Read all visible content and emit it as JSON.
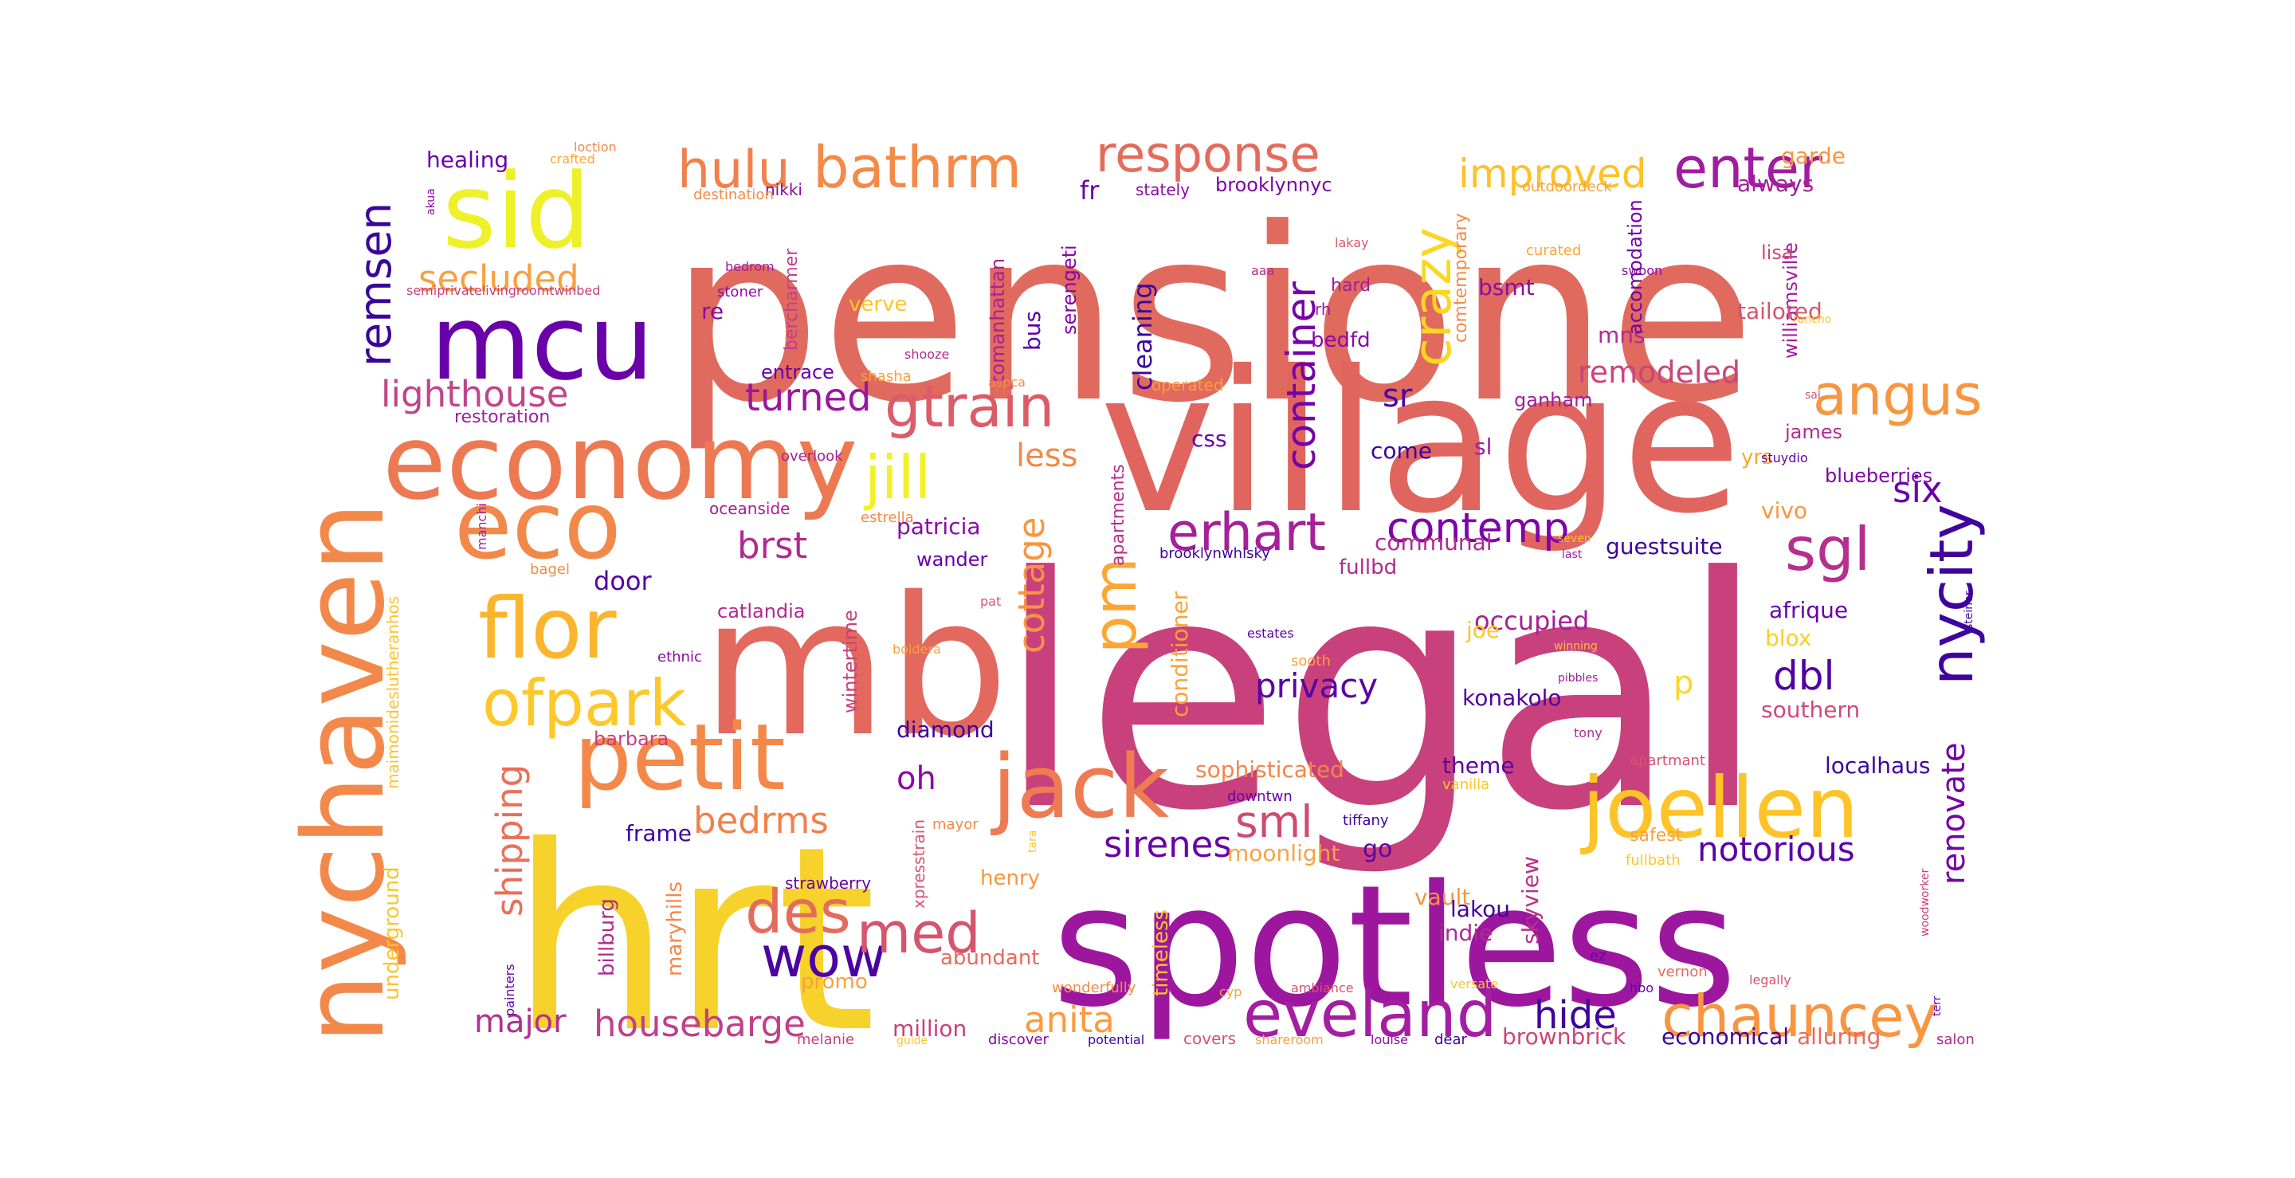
{
  "words": [
    {
      "text": "legal",
      "color": "#c8417d"
    },
    {
      "text": "pensione",
      "color": "#e06a5e"
    },
    {
      "text": "hrt",
      "color": "#f7d22a"
    },
    {
      "text": "village",
      "color": "#e0655f"
    },
    {
      "text": "mb",
      "color": "#e3685e"
    },
    {
      "text": "spotless",
      "color": "#9c179e"
    },
    {
      "text": "nychaven",
      "color": "#f2894a"
    },
    {
      "text": "economy",
      "color": "#ed7953"
    },
    {
      "text": "mcu",
      "color": "#6a00a8"
    },
    {
      "text": "sid",
      "color": "#eef12a"
    },
    {
      "text": "petit",
      "color": "#f48849"
    },
    {
      "text": "eco",
      "color": "#f2884a"
    },
    {
      "text": "joellen",
      "color": "#fdc328"
    },
    {
      "text": "jack",
      "color": "#ee7b52"
    },
    {
      "text": "flor",
      "color": "#fbb52c"
    },
    {
      "text": "ofpark",
      "color": "#fdc82a"
    },
    {
      "text": "eveland",
      "color": "#a31ea1"
    },
    {
      "text": "chauncey",
      "color": "#f89540"
    },
    {
      "text": "wow",
      "color": "#4b03a1"
    },
    {
      "text": "des",
      "color": "#e46c5c"
    },
    {
      "text": "med",
      "color": "#d5546e"
    },
    {
      "text": "nycity",
      "color": "#3e049c"
    },
    {
      "text": "angus",
      "color": "#f7963f"
    },
    {
      "text": "response",
      "color": "#e56b5c"
    },
    {
      "text": "bathrm",
      "color": "#f48a47"
    },
    {
      "text": "hulu",
      "color": "#f0804c"
    },
    {
      "text": "enter",
      "color": "#a01ca0"
    },
    {
      "text": "improved",
      "color": "#fdc228"
    },
    {
      "text": "crazy",
      "color": "#fbd724"
    },
    {
      "text": "gtrain",
      "color": "#db5c68"
    },
    {
      "text": "jill",
      "color": "#f1f125"
    },
    {
      "text": "erhart",
      "color": "#a62098"
    },
    {
      "text": "contemp",
      "color": "#7e03a8"
    },
    {
      "text": "sgl",
      "color": "#b52f8c"
    },
    {
      "text": "pm",
      "color": "#fca636"
    },
    {
      "text": "container",
      "color": "#7601a8"
    },
    {
      "text": "remsen",
      "color": "#3b049a"
    },
    {
      "text": "secluded",
      "color": "#f9a03e"
    },
    {
      "text": "lighthouse",
      "color": "#c0458a"
    },
    {
      "text": "turned",
      "color": "#9c179e"
    },
    {
      "text": "housebarge",
      "color": "#c23f8a"
    },
    {
      "text": "major",
      "color": "#b3308e"
    },
    {
      "text": "shipping",
      "color": "#e87059"
    },
    {
      "text": "sml",
      "color": "#cf4a73"
    },
    {
      "text": "bedrms",
      "color": "#f1814b"
    },
    {
      "text": "cottage",
      "color": "#f89541"
    },
    {
      "text": "hide",
      "color": "#3e049c"
    },
    {
      "text": "notorious",
      "color": "#5c01a6"
    },
    {
      "text": "renovate",
      "color": "#7701a8"
    },
    {
      "text": "dbl",
      "color": "#5002a2"
    },
    {
      "text": "six",
      "color": "#6a00a8"
    },
    {
      "text": "anita",
      "color": "#fb9b40"
    },
    {
      "text": "sirenes",
      "color": "#6a00a8"
    },
    {
      "text": "privacy",
      "color": "#5a02a3"
    },
    {
      "text": "less",
      "color": "#f48849"
    },
    {
      "text": "brst",
      "color": "#b12a90"
    },
    {
      "text": "oh",
      "color": "#8c0aa5"
    },
    {
      "text": "sr",
      "color": "#4c02a1"
    },
    {
      "text": "remodeled",
      "color": "#ca457a"
    },
    {
      "text": "occupied",
      "color": "#a62098"
    },
    {
      "text": "p",
      "color": "#fbd724"
    },
    {
      "text": "konakolo",
      "color": "#5102a3"
    },
    {
      "text": "door",
      "color": "#5302a3"
    },
    {
      "text": "patricia",
      "color": "#8a09a5"
    },
    {
      "text": "diamond",
      "color": "#3e049c"
    },
    {
      "text": "frame",
      "color": "#3e049c"
    },
    {
      "text": "sophisticated",
      "color": "#f3844b"
    },
    {
      "text": "moonlight",
      "color": "#f9a242"
    },
    {
      "text": "go",
      "color": "#5c01a6"
    },
    {
      "text": "theme",
      "color": "#5a02a3"
    },
    {
      "text": "vault",
      "color": "#f89441"
    },
    {
      "text": "lakou",
      "color": "#3e049c"
    },
    {
      "text": "indie",
      "color": "#b12a90"
    },
    {
      "text": "skyview",
      "color": "#b83289"
    },
    {
      "text": "communal",
      "color": "#b12a90"
    },
    {
      "text": "guestsuite",
      "color": "#3e049c"
    },
    {
      "text": "afrique",
      "color": "#6a00a8"
    },
    {
      "text": "blox",
      "color": "#fcce25"
    },
    {
      "text": "southern",
      "color": "#ce4b75"
    },
    {
      "text": "localhaus",
      "color": "#3e049c"
    },
    {
      "text": "brownbrick",
      "color": "#cc4778"
    },
    {
      "text": "economical",
      "color": "#3e049c"
    },
    {
      "text": "alluring",
      "color": "#e56b5d"
    },
    {
      "text": "joe",
      "color": "#fdc527"
    },
    {
      "text": "vivo",
      "color": "#f89540"
    },
    {
      "text": "healing",
      "color": "#6a00a8"
    },
    {
      "text": "cleaning",
      "color": "#3e049c"
    },
    {
      "text": "bus",
      "color": "#5c01a6"
    },
    {
      "text": "fr",
      "color": "#6a00a8"
    },
    {
      "text": "tomanhattan",
      "color": "#a62098"
    },
    {
      "text": "serengeti",
      "color": "#8606a6"
    },
    {
      "text": "conditioner",
      "color": "#fba238"
    },
    {
      "text": "apartments",
      "color": "#b52f8c"
    },
    {
      "text": "css",
      "color": "#6a00a8"
    },
    {
      "text": "come",
      "color": "#3e049c"
    },
    {
      "text": "sl",
      "color": "#a01ca0"
    },
    {
      "text": "fullbd",
      "color": "#b12a90"
    },
    {
      "text": "bedfd",
      "color": "#8c0aa5"
    },
    {
      "text": "mns",
      "color": "#b12a90"
    },
    {
      "text": "bsmt",
      "color": "#8c0aa5"
    },
    {
      "text": "accomodation",
      "color": "#7201a8"
    },
    {
      "text": "williamsville",
      "color": "#a31ea1"
    },
    {
      "text": "comtemporary",
      "color": "#f58b47"
    },
    {
      "text": "tailored",
      "color": "#d5546e"
    },
    {
      "text": "always",
      "color": "#a62098"
    },
    {
      "text": "garde",
      "color": "#f7963f"
    },
    {
      "text": "lisa",
      "color": "#cc4778"
    },
    {
      "text": "james",
      "color": "#b12a90"
    },
    {
      "text": "yrs",
      "color": "#fca636"
    },
    {
      "text": "blueberries",
      "color": "#7e03a8"
    },
    {
      "text": "ganham",
      "color": "#a31ea1"
    },
    {
      "text": "operated",
      "color": "#fb9f3a"
    },
    {
      "text": "brooklynnyc",
      "color": "#7e03a8"
    },
    {
      "text": "stately",
      "color": "#8a09a5"
    },
    {
      "text": "hard",
      "color": "#a01ca0"
    },
    {
      "text": "rh",
      "color": "#a01ca0"
    },
    {
      "text": "aaa",
      "color": "#b12a90"
    },
    {
      "text": "lakay",
      "color": "#d8576b"
    },
    {
      "text": "curated",
      "color": "#fca636"
    },
    {
      "text": "swoon",
      "color": "#8c0aa5"
    },
    {
      "text": "rancho",
      "color": "#fdc527"
    },
    {
      "text": "sal",
      "color": "#d5546e"
    },
    {
      "text": "stuydio",
      "color": "#6a00a8"
    },
    {
      "text": "outdoordeck",
      "color": "#fba238"
    },
    {
      "text": "nikki",
      "color": "#8c0aa5"
    },
    {
      "text": "destination",
      "color": "#f58b47"
    },
    {
      "text": "crafted",
      "color": "#fca636"
    },
    {
      "text": "loction",
      "color": "#f48849"
    },
    {
      "text": "akua",
      "color": "#8c0aa5"
    },
    {
      "text": "bedrom",
      "color": "#a01ca0"
    },
    {
      "text": "semiprivatelivingroomtwinbed",
      "color": "#c8417d"
    },
    {
      "text": "stoner",
      "color": "#8c0aa5"
    },
    {
      "text": "re",
      "color": "#8c0aa5"
    },
    {
      "text": "bercharmer",
      "color": "#c23f8a"
    },
    {
      "text": "verve",
      "color": "#fdc527"
    },
    {
      "text": "shooze",
      "color": "#b12a90"
    },
    {
      "text": "entrace",
      "color": "#6a00a8"
    },
    {
      "text": "shasha",
      "color": "#fb9f3a"
    },
    {
      "text": "restoration",
      "color": "#a01ca0"
    },
    {
      "text": "overlook",
      "color": "#a62098"
    },
    {
      "text": "aspca",
      "color": "#f58b47"
    },
    {
      "text": "oceanside",
      "color": "#a62098"
    },
    {
      "text": "estrella",
      "color": "#f58b47"
    },
    {
      "text": "manchi",
      "color": "#a31ea1"
    },
    {
      "text": "bagel",
      "color": "#f58b47"
    },
    {
      "text": "catlandia",
      "color": "#b12a90"
    },
    {
      "text": "wander",
      "color": "#6a00a8"
    },
    {
      "text": "wintertime",
      "color": "#c8417d"
    },
    {
      "text": "ethnic",
      "color": "#8c0aa5"
    },
    {
      "text": "boldera",
      "color": "#f9a03e"
    },
    {
      "text": "pat",
      "color": "#d8576b"
    },
    {
      "text": "maimonideslutheranhos",
      "color": "#fdc328"
    },
    {
      "text": "barbara",
      "color": "#c8417d"
    },
    {
      "text": "brooklynwhisky",
      "color": "#3e049c"
    },
    {
      "text": "estates",
      "color": "#5c01a6"
    },
    {
      "text": "pibbles",
      "color": "#a01ca0"
    },
    {
      "text": "winning",
      "color": "#fdc527"
    },
    {
      "text": "seven",
      "color": "#fdc527"
    },
    {
      "text": "last",
      "color": "#a01ca0"
    },
    {
      "text": "steiner",
      "color": "#3e049c"
    },
    {
      "text": "tony",
      "color": "#b12a90"
    },
    {
      "text": "sooth",
      "color": "#f9a03e"
    },
    {
      "text": "downtwn",
      "color": "#6a00a8"
    },
    {
      "text": "vanilla",
      "color": "#fdc527"
    },
    {
      "text": "apartmant",
      "color": "#d5546e"
    },
    {
      "text": "tiffany",
      "color": "#3e049c"
    },
    {
      "text": "mayor",
      "color": "#f48849"
    },
    {
      "text": "tara",
      "color": "#fdc527"
    },
    {
      "text": "fullbath",
      "color": "#fdc527"
    },
    {
      "text": "safest",
      "color": "#f9a03e"
    },
    {
      "text": "henry",
      "color": "#f7963f"
    },
    {
      "text": "strawberry",
      "color": "#6a00a8"
    },
    {
      "text": "xpresstrain",
      "color": "#d5546e"
    },
    {
      "text": "timeless",
      "color": "#fdc527"
    },
    {
      "text": "billburg",
      "color": "#b12a90"
    },
    {
      "text": "maryhills",
      "color": "#f48849"
    },
    {
      "text": "underground",
      "color": "#fdc527"
    },
    {
      "text": "painters",
      "color": "#6a00a8"
    },
    {
      "text": "promo",
      "color": "#f9a03e"
    },
    {
      "text": "abundant",
      "color": "#e56b5d"
    },
    {
      "text": "million",
      "color": "#c8417d"
    },
    {
      "text": "versate",
      "color": "#fdc527"
    },
    {
      "text": "ez",
      "color": "#6a00a8"
    },
    {
      "text": "vernon",
      "color": "#e56b5d"
    },
    {
      "text": "legally",
      "color": "#d5546e"
    },
    {
      "text": "woodworker",
      "color": "#c8417d"
    },
    {
      "text": "terr",
      "color": "#6a00a8"
    },
    {
      "text": "hbo",
      "color": "#6a00a8"
    },
    {
      "text": "cyp",
      "color": "#f9a03e"
    },
    {
      "text": "ambiance",
      "color": "#d5546e"
    },
    {
      "text": "wonderfully",
      "color": "#f58b47"
    },
    {
      "text": "melanie",
      "color": "#c8417d"
    },
    {
      "text": "guide",
      "color": "#fdc527"
    },
    {
      "text": "discover",
      "color": "#8c0aa5"
    },
    {
      "text": "potential",
      "color": "#3e049c"
    },
    {
      "text": "covers",
      "color": "#d5546e"
    },
    {
      "text": "shareroom",
      "color": "#f9a03e"
    },
    {
      "text": "louise",
      "color": "#8c0aa5"
    },
    {
      "text": "dear",
      "color": "#3e049c"
    },
    {
      "text": "salon",
      "color": "#b12a90"
    }
  ]
}
